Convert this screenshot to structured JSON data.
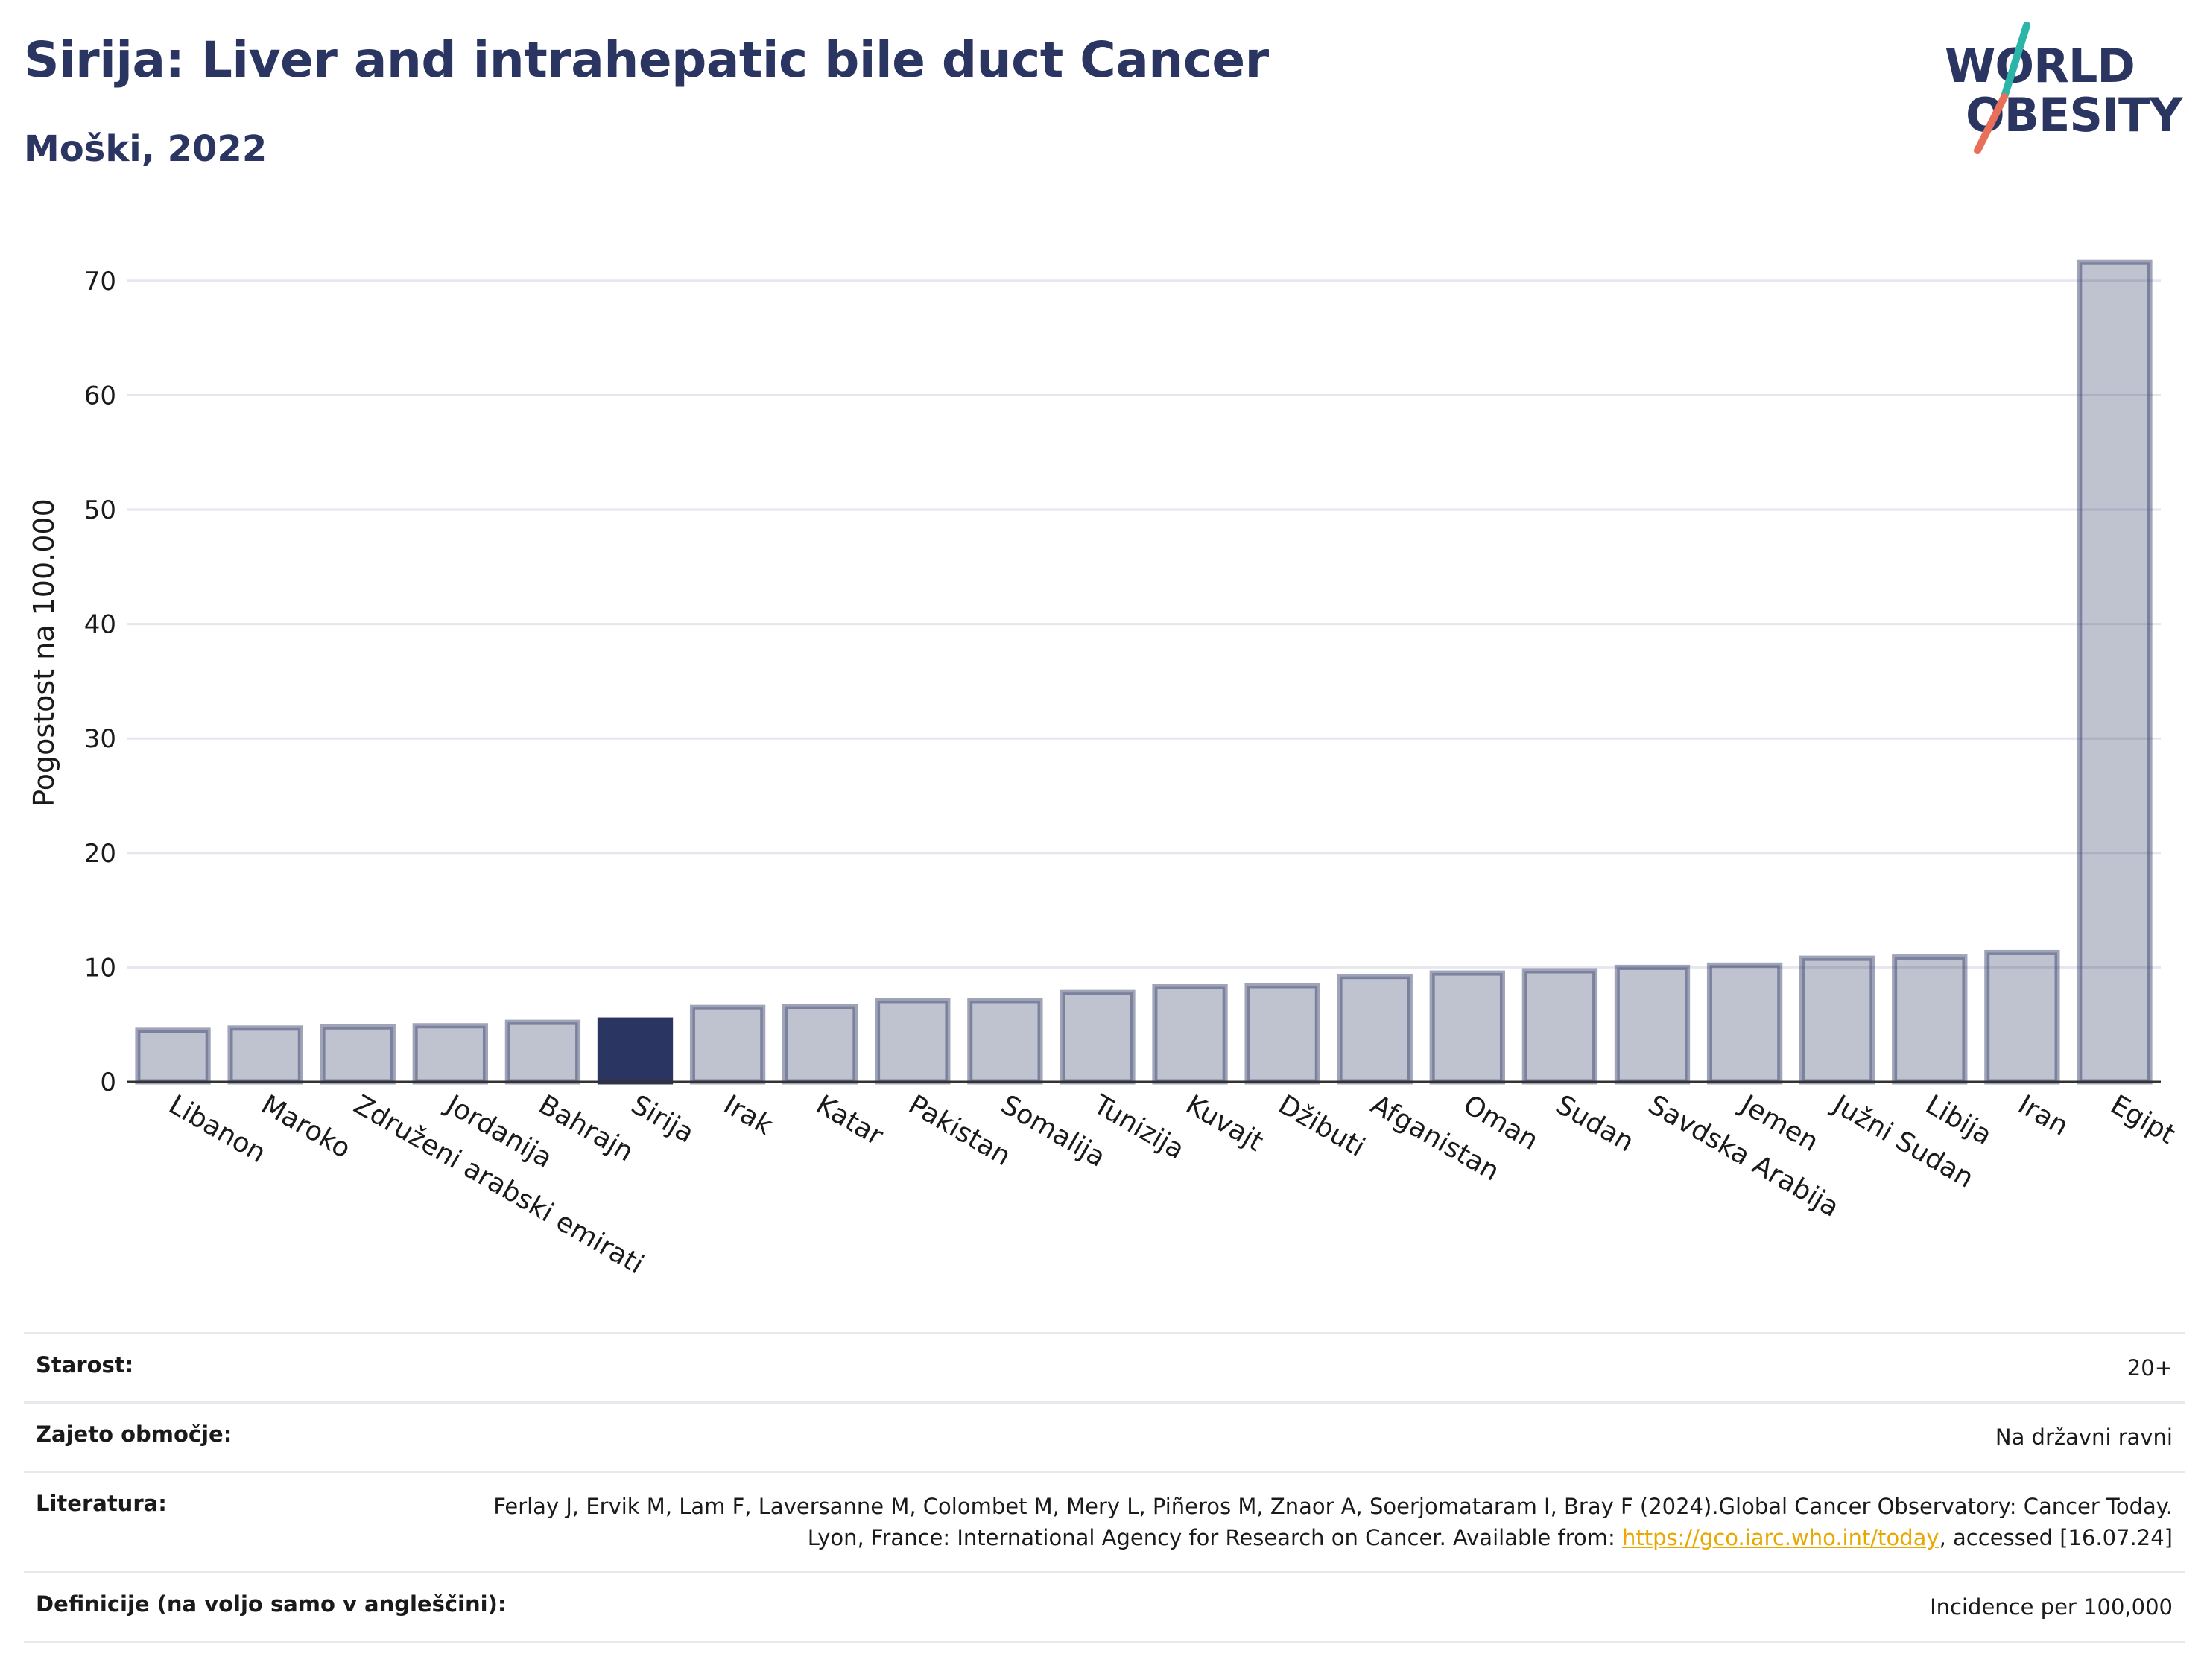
{
  "header": {
    "title": "Sirija: Liver and intrahepatic bile duct Cancer",
    "subtitle": "Moški, 2022"
  },
  "logo": {
    "line1": "WORLD",
    "line2": "OBESITY",
    "accent_colors": [
      "#2bb5a8",
      "#e8705a"
    ]
  },
  "chart_data": {
    "type": "bar",
    "ylabel": "Pogostost na 100.000",
    "ylim": [
      0,
      75
    ],
    "yticks": [
      0,
      10,
      20,
      30,
      40,
      50,
      60,
      70
    ],
    "grid": true,
    "highlight": "Sirija",
    "colors": {
      "bar": "#2b3561",
      "highlight": "#2b3561"
    },
    "categories": [
      "Libanon",
      "Maroko",
      "Združeni arabski emirati",
      "Jordanija",
      "Bahrajn",
      "Sirija",
      "Irak",
      "Katar",
      "Pakistan",
      "Somalija",
      "Tunizija",
      "Kuvajt",
      "Džibuti",
      "Afganistan",
      "Oman",
      "Sudan",
      "Savdska Arabija",
      "Jemen",
      "Južni Sudan",
      "Libija",
      "Iran",
      "Egipt"
    ],
    "values": [
      4.5,
      4.7,
      4.8,
      4.9,
      5.2,
      5.4,
      6.5,
      6.6,
      7.1,
      7.1,
      7.8,
      8.3,
      8.4,
      9.2,
      9.5,
      9.7,
      10.0,
      10.2,
      10.8,
      10.9,
      11.3,
      71.6
    ]
  },
  "meta": {
    "rows": [
      {
        "label": "Starost:",
        "value": "20+"
      },
      {
        "label": "Zajeto območje:",
        "value": "Na državni ravni"
      },
      {
        "label": "Literatura:",
        "value_before": "Ferlay J, Ervik M, Lam F, Laversanne M, Colombet M, Mery L, Piñeros M, Znaor A, Soerjomataram I, Bray F (2024).Global Cancer Observatory: Cancer Today. Lyon, France: International Agency for Research on Cancer. Available from: ",
        "link": "https://gco.iarc.who.int/today",
        "value_after": ", accessed [16.07.24]"
      },
      {
        "label": "Definicije (na voljo samo v angleščini):",
        "value": "Incidence per 100,000"
      }
    ]
  }
}
